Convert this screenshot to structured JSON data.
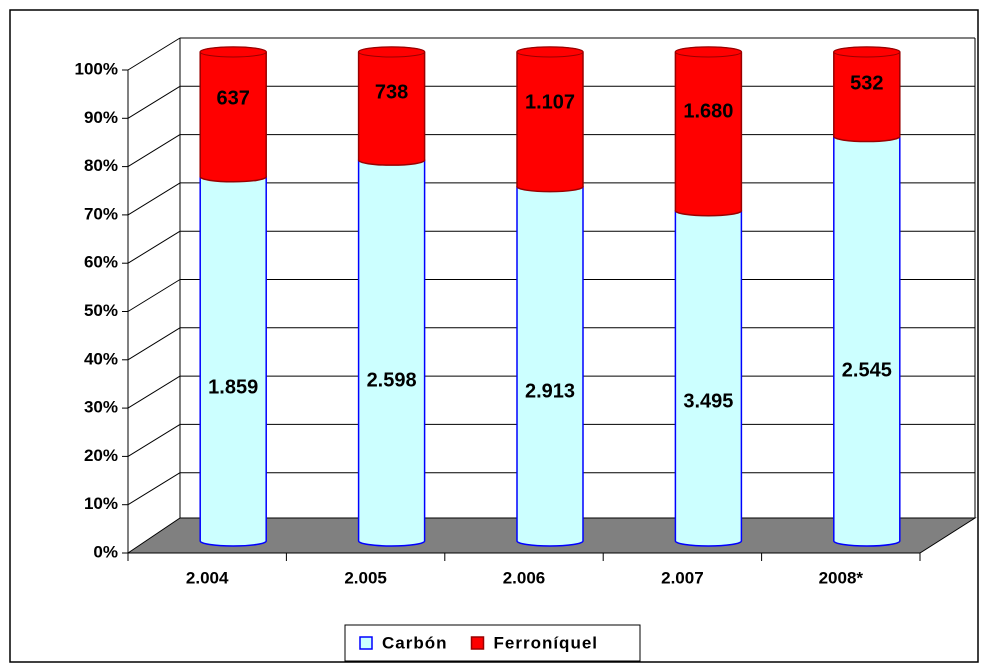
{
  "chart_data": {
    "type": "bar",
    "stacking": "percent",
    "categories": [
      "2.004",
      "2.005",
      "2.006",
      "2.007",
      "2008*"
    ],
    "series": [
      {
        "name": "Carbón",
        "color": "#ccffff",
        "values": [
          1859,
          2598,
          2913,
          3495,
          2545
        ],
        "value_labels": [
          "1.859",
          "2.598",
          "2.913",
          "3.495",
          "2.545"
        ]
      },
      {
        "name": "Ferroníquel",
        "color": "#ff0000",
        "values": [
          637,
          738,
          1107,
          1680,
          532
        ],
        "value_labels": [
          "637",
          "738",
          "1.107",
          "1.680",
          "532"
        ]
      }
    ],
    "ylim": [
      0,
      100
    ],
    "yticks": [
      {
        "value": 0,
        "label": "0%"
      },
      {
        "value": 10,
        "label": "10%"
      },
      {
        "value": 20,
        "label": "20%"
      },
      {
        "value": 30,
        "label": "30%"
      },
      {
        "value": 40,
        "label": "40%"
      },
      {
        "value": 50,
        "label": "50%"
      },
      {
        "value": 60,
        "label": "60%"
      },
      {
        "value": 70,
        "label": "70%"
      },
      {
        "value": 80,
        "label": "80%"
      },
      {
        "value": 90,
        "label": "90%"
      },
      {
        "value": 100,
        "label": "100%"
      }
    ],
    "grid": true,
    "legend": "bottom"
  }
}
